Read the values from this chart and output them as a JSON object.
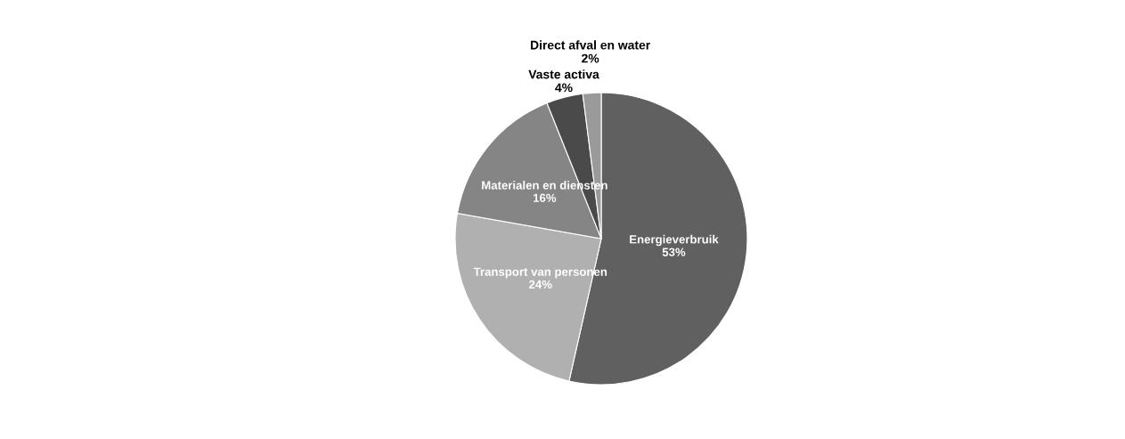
{
  "chart_data": {
    "type": "pie",
    "categories": [
      "Energieverbruik",
      "Transport van personen",
      "Materialen en diensten",
      "Vaste activa",
      "Direct afval en water"
    ],
    "values": [
      53,
      24,
      16,
      4,
      2
    ],
    "value_labels": [
      "53%",
      "24%",
      "16%",
      "4%",
      "2%"
    ],
    "colors": [
      "#606060",
      "#b0b0b0",
      "#858585",
      "#4a4a4a",
      "#9a9a9a"
    ],
    "legend": false
  }
}
